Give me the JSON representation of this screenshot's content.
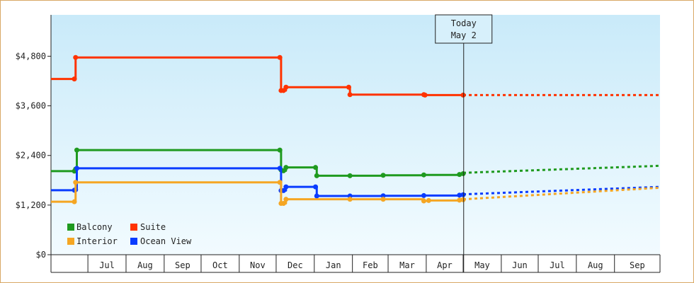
{
  "chart_data": {
    "type": "line",
    "title": "",
    "xlabel": "",
    "ylabel": "",
    "ylim": [
      0,
      5800
    ],
    "y_ticks": [
      0,
      1200,
      2400,
      3600,
      4800
    ],
    "y_tick_labels": [
      "$0",
      "$1,200",
      "$2,400",
      "$3,600",
      "$4,800"
    ],
    "x_range": [
      "2023-06-01",
      "2024-10-08"
    ],
    "x_tick_labels": [
      "Jul",
      "Aug",
      "Sep",
      "Oct",
      "Nov",
      "Dec",
      "Jan",
      "Feb",
      "Mar",
      "Apr",
      "May",
      "Jun",
      "Jul",
      "Aug",
      "Sep"
    ],
    "x_tick_dates": [
      "2023-07-01",
      "2023-08-01",
      "2023-09-01",
      "2023-10-01",
      "2023-11-01",
      "2023-12-01",
      "2024-01-01",
      "2024-02-01",
      "2024-03-01",
      "2024-04-01",
      "2024-05-01",
      "2024-06-01",
      "2024-07-01",
      "2024-08-01",
      "2024-09-01"
    ],
    "step": true,
    "grid": false,
    "legend_position": "bottom-left",
    "today": {
      "date": "2024-05-02",
      "label_line1": "Today",
      "label_line2": "May 2"
    },
    "colors": {
      "Balcony": "#1f9a1f",
      "Suite": "#ff3300",
      "Interior": "#f5a623",
      "Ocean View": "#0a3cff"
    },
    "series": [
      {
        "name": "Suite",
        "points": [
          [
            "2023-06-01",
            4250
          ],
          [
            "2023-06-20",
            4250
          ],
          [
            "2023-06-21",
            4770
          ],
          [
            "2023-12-04",
            4770
          ],
          [
            "2023-12-05",
            3970
          ],
          [
            "2023-12-07",
            3970
          ],
          [
            "2023-12-09",
            4050
          ],
          [
            "2024-01-29",
            4050
          ],
          [
            "2024-01-30",
            3870
          ],
          [
            "2024-03-30",
            3870
          ],
          [
            "2024-03-31",
            3860
          ],
          [
            "2024-05-01",
            3860
          ]
        ],
        "projection": [
          [
            "2024-05-01",
            3860
          ],
          [
            "2024-10-08",
            3860
          ]
        ]
      },
      {
        "name": "Balcony",
        "points": [
          [
            "2023-06-01",
            2020
          ],
          [
            "2023-06-20",
            2020
          ],
          [
            "2023-06-21",
            2070
          ],
          [
            "2023-06-22",
            2530
          ],
          [
            "2023-12-04",
            2530
          ],
          [
            "2023-12-05",
            2050
          ],
          [
            "2023-12-07",
            2030
          ],
          [
            "2023-12-09",
            2110
          ],
          [
            "2024-01-02",
            2110
          ],
          [
            "2024-01-03",
            1910
          ],
          [
            "2024-01-30",
            1910
          ],
          [
            "2024-02-26",
            1920
          ],
          [
            "2024-03-30",
            1930
          ],
          [
            "2024-04-28",
            1940
          ],
          [
            "2024-05-01",
            1960
          ]
        ],
        "projection": [
          [
            "2024-05-01",
            1980
          ],
          [
            "2024-10-08",
            2150
          ]
        ]
      },
      {
        "name": "Ocean View",
        "points": [
          [
            "2023-06-01",
            1560
          ],
          [
            "2023-06-20",
            1560
          ],
          [
            "2023-06-21",
            1570
          ],
          [
            "2023-06-22",
            2090
          ],
          [
            "2023-12-04",
            2090
          ],
          [
            "2023-12-05",
            1550
          ],
          [
            "2023-12-07",
            1550
          ],
          [
            "2023-12-09",
            1640
          ],
          [
            "2024-01-02",
            1640
          ],
          [
            "2024-01-03",
            1420
          ],
          [
            "2024-01-30",
            1420
          ],
          [
            "2024-02-26",
            1425
          ],
          [
            "2024-03-30",
            1430
          ],
          [
            "2024-04-28",
            1440
          ],
          [
            "2024-05-01",
            1450
          ]
        ],
        "projection": [
          [
            "2024-05-01",
            1460
          ],
          [
            "2024-10-08",
            1640
          ]
        ]
      },
      {
        "name": "Interior",
        "points": [
          [
            "2023-06-01",
            1280
          ],
          [
            "2023-06-20",
            1280
          ],
          [
            "2023-06-21",
            1750
          ],
          [
            "2023-12-04",
            1750
          ],
          [
            "2023-12-05",
            1240
          ],
          [
            "2023-12-07",
            1240
          ],
          [
            "2023-12-09",
            1340
          ],
          [
            "2024-01-30",
            1340
          ],
          [
            "2024-02-26",
            1340
          ],
          [
            "2024-03-30",
            1300
          ],
          [
            "2024-04-03",
            1310
          ],
          [
            "2024-04-28",
            1320
          ],
          [
            "2024-05-01",
            1330
          ]
        ],
        "projection": [
          [
            "2024-05-01",
            1340
          ],
          [
            "2024-10-08",
            1620
          ]
        ]
      }
    ]
  },
  "legend": {
    "items": [
      {
        "label": "Balcony",
        "color": "#1f9a1f"
      },
      {
        "label": "Suite",
        "color": "#ff3300"
      },
      {
        "label": "Interior",
        "color": "#f5a623"
      },
      {
        "label": "Ocean View",
        "color": "#0a3cff"
      }
    ]
  }
}
